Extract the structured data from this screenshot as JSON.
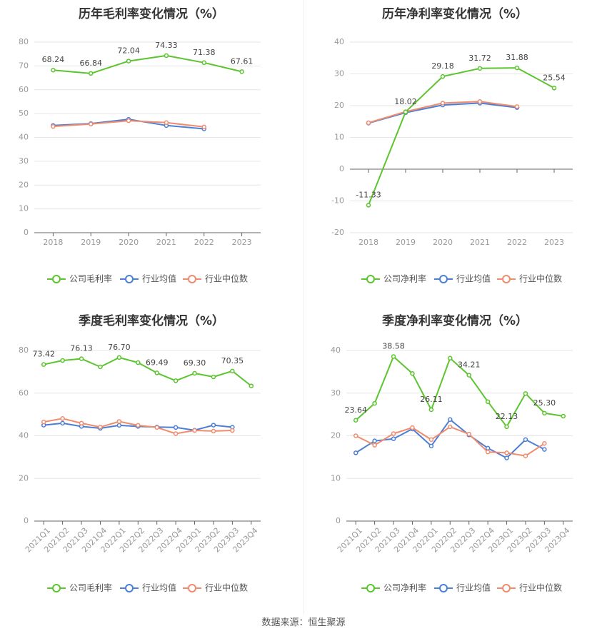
{
  "colors": {
    "company": "#5cc42e",
    "avg": "#4b7fd6",
    "median": "#f08c6e"
  },
  "source": "数据来源：恒生聚源",
  "chart_data": [
    {
      "type": "line",
      "title": "历年毛利率变化情况（%）",
      "categories": [
        "2018",
        "2019",
        "2020",
        "2021",
        "2022",
        "2023"
      ],
      "ylim": [
        0,
        80
      ],
      "yticks": [
        0,
        10,
        20,
        30,
        40,
        50,
        60,
        70,
        80
      ],
      "rotate_labels": false,
      "series": [
        {
          "key": "company",
          "name": "公司毛利率",
          "values": [
            68.24,
            66.84,
            72.04,
            74.33,
            71.38,
            67.61
          ],
          "labels": [
            "68.24",
            "66.84",
            "72.04",
            "74.33",
            "71.38",
            "67.61"
          ]
        },
        {
          "key": "avg",
          "name": "行业均值",
          "values": [
            45.0,
            45.8,
            47.6,
            45.0,
            43.6,
            null
          ]
        },
        {
          "key": "median",
          "name": "行业中位数",
          "values": [
            44.6,
            45.6,
            47.0,
            46.2,
            44.4,
            null
          ]
        }
      ]
    },
    {
      "type": "line",
      "title": "历年净利率变化情况（%）",
      "categories": [
        "2018",
        "2019",
        "2020",
        "2021",
        "2022",
        "2023"
      ],
      "ylim": [
        -20,
        40
      ],
      "yticks": [
        -20,
        -10,
        0,
        10,
        20,
        30,
        40
      ],
      "rotate_labels": false,
      "series": [
        {
          "key": "company",
          "name": "公司净利率",
          "values": [
            -11.33,
            18.02,
            29.18,
            31.72,
            31.88,
            25.54
          ],
          "labels": [
            "-11.33",
            "18.02",
            "29.18",
            "31.72",
            "31.88",
            "25.54"
          ]
        },
        {
          "key": "avg",
          "name": "行业均值",
          "values": [
            14.5,
            17.8,
            20.2,
            20.8,
            19.4,
            null
          ]
        },
        {
          "key": "median",
          "name": "行业中位数",
          "values": [
            14.6,
            18.1,
            20.8,
            21.3,
            19.7,
            null
          ]
        }
      ]
    },
    {
      "type": "line",
      "title": "季度毛利率变化情况（%）",
      "categories": [
        "2021Q1",
        "2021Q2",
        "2021Q3",
        "2021Q4",
        "2022Q1",
        "2022Q2",
        "2022Q3",
        "2022Q4",
        "2023Q1",
        "2023Q2",
        "2023Q3",
        "2023Q4"
      ],
      "ylim": [
        0,
        80
      ],
      "yticks": [
        0,
        20,
        40,
        60,
        80
      ],
      "rotate_labels": true,
      "series": [
        {
          "key": "company",
          "name": "公司毛利率",
          "values": [
            73.42,
            75.3,
            76.13,
            72.3,
            76.7,
            74.3,
            69.49,
            65.8,
            69.3,
            67.6,
            70.35,
            63.4
          ],
          "labels": [
            "73.42",
            "",
            "76.13",
            "",
            "76.70",
            "",
            "69.49",
            "",
            "69.30",
            "",
            "70.35",
            ""
          ]
        },
        {
          "key": "avg",
          "name": "行业均值",
          "values": [
            45.0,
            45.9,
            44.4,
            43.5,
            44.9,
            44.4,
            44.1,
            43.9,
            42.6,
            45.0,
            44.0,
            null
          ]
        },
        {
          "key": "median",
          "name": "行业中位数",
          "values": [
            46.5,
            48.1,
            45.9,
            44.1,
            46.7,
            44.9,
            43.9,
            41.0,
            42.5,
            42.2,
            42.5,
            null
          ]
        }
      ]
    },
    {
      "type": "line",
      "title": "季度净利率变化情况（%）",
      "categories": [
        "2021Q1",
        "2021Q2",
        "2021Q3",
        "2021Q4",
        "2022Q1",
        "2022Q2",
        "2022Q3",
        "2022Q4",
        "2023Q1",
        "2023Q2",
        "2023Q3",
        "2023Q4"
      ],
      "ylim": [
        0,
        40
      ],
      "yticks": [
        0,
        10,
        20,
        30,
        40
      ],
      "rotate_labels": true,
      "series": [
        {
          "key": "company",
          "name": "公司净利率",
          "values": [
            23.64,
            27.6,
            38.58,
            34.6,
            26.11,
            38.2,
            34.21,
            28.0,
            22.13,
            29.9,
            25.3,
            24.6
          ],
          "labels": [
            "23.64",
            "",
            "38.58",
            "",
            "26.11",
            "",
            "34.21",
            "",
            "22.13",
            "",
            "25.30",
            ""
          ]
        },
        {
          "key": "avg",
          "name": "行业均值",
          "values": [
            16.0,
            18.8,
            19.3,
            21.6,
            17.6,
            23.8,
            20.2,
            17.1,
            14.8,
            19.1,
            16.8,
            null
          ]
        },
        {
          "key": "median",
          "name": "行业中位数",
          "values": [
            20.0,
            17.8,
            20.5,
            21.9,
            19.1,
            22.1,
            20.4,
            16.2,
            16.0,
            15.3,
            18.2,
            null
          ]
        }
      ]
    }
  ]
}
